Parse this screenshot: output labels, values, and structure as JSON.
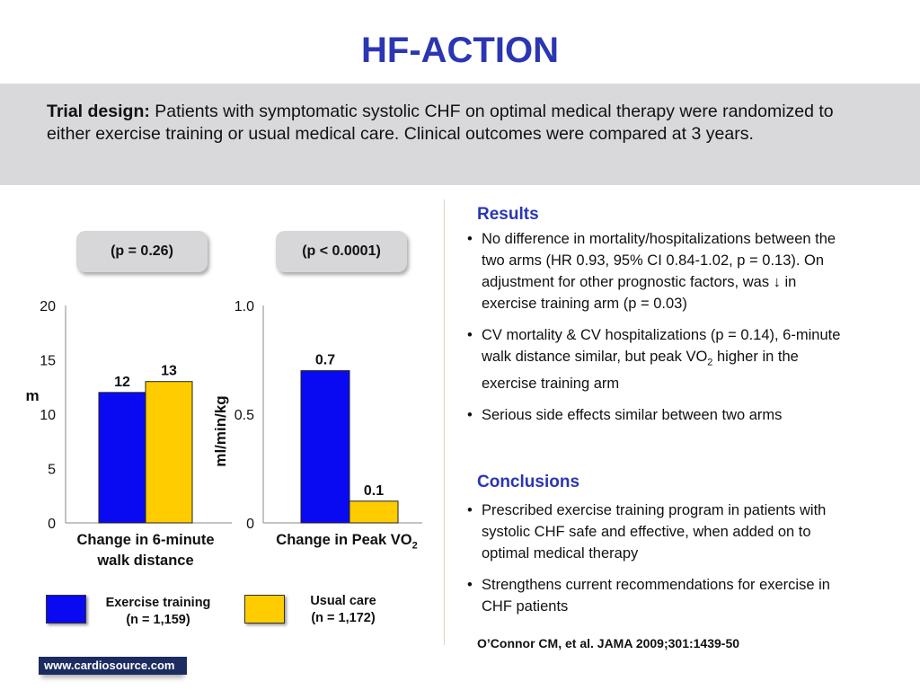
{
  "title": "HF-ACTION",
  "trial_design": {
    "label": "Trial design:",
    "text": " Patients with symptomatic systolic CHF on optimal medical therapy were randomized to either exercise training or usual medical care. Clinical outcomes were compared at 3 years."
  },
  "chart_data": [
    {
      "type": "bar",
      "categories": [
        "Exercise training",
        "Usual care"
      ],
      "values": [
        12,
        13
      ],
      "value_labels": [
        "12",
        "13"
      ],
      "ylabel": "m",
      "ylim": [
        0,
        20
      ],
      "yticks": [
        0,
        5,
        10,
        15,
        20
      ],
      "ytick_labels": [
        "0",
        "5",
        "10",
        "15",
        "20"
      ],
      "pvalue": "(p = 0.26)",
      "xlabel_line1": "Change in 6-minute",
      "xlabel_line2": "walk distance",
      "colors": [
        "#0a0af2",
        "#ffcc00"
      ]
    },
    {
      "type": "bar",
      "categories": [
        "Exercise training",
        "Usual care"
      ],
      "values": [
        0.7,
        0.1
      ],
      "value_labels": [
        "0.7",
        "0.1"
      ],
      "ylabel": "ml/min/kg",
      "ylim": [
        0,
        1.0
      ],
      "yticks": [
        0,
        0.5,
        1.0
      ],
      "ytick_labels": [
        "0",
        "0.5",
        "1.0"
      ],
      "pvalue": "(p < 0.0001)",
      "xlabel_main": "Change in Peak VO",
      "xlabel_sub": "2",
      "colors": [
        "#0a0af2",
        "#ffcc00"
      ]
    }
  ],
  "legend": [
    {
      "line1": "Exercise training",
      "line2": "(n = 1,159)",
      "color": "#0a0af2"
    },
    {
      "line1": "Usual care",
      "line2": "(n = 1,172)",
      "color": "#ffcc00"
    }
  ],
  "results": {
    "heading": "Results",
    "items": [
      {
        "text": "No difference in mortality/hospitalizations between the two arms (HR 0.93, 95% CI 0.84-1.02, p = 0.13). On adjustment for other prognostic factors, was ↓ in exercise training arm (p = 0.03)"
      },
      {
        "pre": "CV mortality & CV hospitalizations (p = 0.14), 6-minute walk distance similar, but peak VO",
        "sub": "2",
        "post": " higher in the exercise training arm"
      },
      {
        "text": "Serious side effects similar between two arms"
      }
    ]
  },
  "conclusions": {
    "heading": "Conclusions",
    "items": [
      "Prescribed exercise training program in patients with systolic CHF safe and effective, when added on to optimal medical therapy",
      "Strengthens current recommendations for exercise in CHF patients"
    ]
  },
  "citation": "O’Connor CM, et al. JAMA 2009;301:1439-50",
  "website": "www.cardiosource.com"
}
